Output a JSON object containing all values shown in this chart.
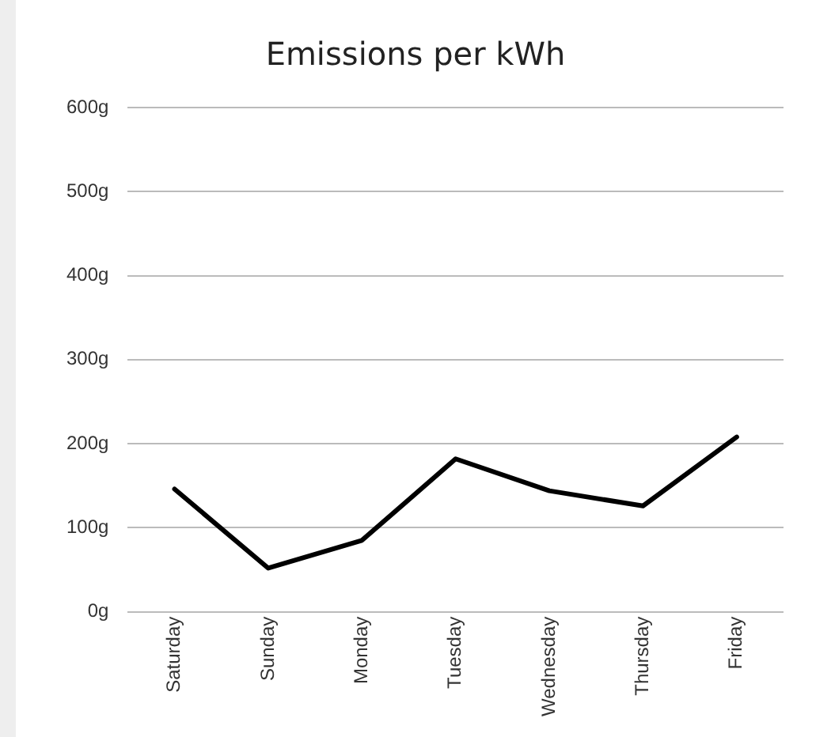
{
  "chart_data": {
    "type": "line",
    "title": "Emissions per kWh",
    "categories": [
      "Saturday",
      "Sunday",
      "Monday",
      "Tuesday",
      "Wednesday",
      "Thursday",
      "Friday"
    ],
    "series": [
      {
        "color": "#000000",
        "values": [
          146,
          52,
          85,
          182,
          144,
          126,
          208
        ]
      }
    ],
    "ylim": [
      0,
      600
    ],
    "yticks": [
      {
        "value": 0,
        "label": "0g"
      },
      {
        "value": 100,
        "label": "100g"
      },
      {
        "value": 200,
        "label": "200g"
      },
      {
        "value": 300,
        "label": "300g"
      },
      {
        "value": 400,
        "label": "400g"
      },
      {
        "value": 500,
        "label": "500g"
      },
      {
        "value": 600,
        "label": "600g"
      }
    ],
    "grid": "y",
    "legend": false,
    "marker": "none",
    "line_style": "solid"
  }
}
